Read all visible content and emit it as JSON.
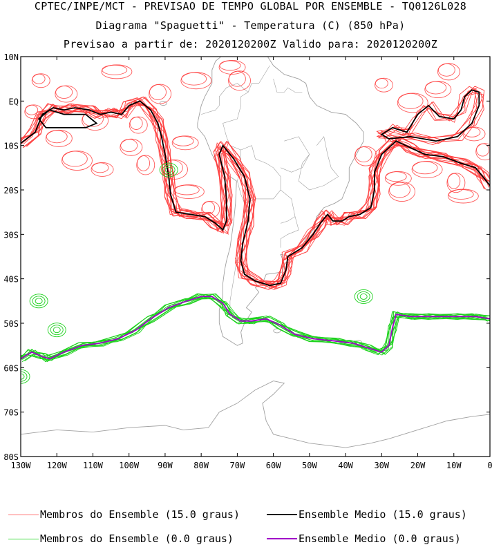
{
  "header": {
    "line1": "CPTEC/INPE/MCT - PREVISAO DE TEMPO GLOBAL POR ENSEMBLE - TQ0126L028",
    "line2": "Diagrama \"Spaguetti\" - Temperatura (C) (850 hPa)",
    "line3": "Previsao a partir de: 2020120200Z  Valido para: 2020120200Z"
  },
  "map": {
    "lat_range": [
      -80,
      10
    ],
    "lon_range": [
      -130,
      0
    ],
    "lat_ticks": [
      "10N",
      "EQ",
      "10S",
      "20S",
      "30S",
      "40S",
      "50S",
      "60S",
      "70S",
      "80S"
    ],
    "lon_ticks": [
      "130W",
      "120W",
      "110W",
      "100W",
      "90W",
      "80W",
      "70W",
      "60W",
      "50W",
      "40W",
      "30W",
      "20W",
      "10W",
      "0"
    ],
    "colors": {
      "members_15": "#ff3c3c",
      "mean_15": "#000000",
      "members_0": "#1ed21e",
      "mean_0": "#a000c8",
      "coast": "#a0a0a0"
    }
  },
  "legend": {
    "members_15": "Membros do Ensemble (15.0 graus)",
    "mean_15": "Ensemble Medio (15.0 graus)",
    "members_0": "Membros do Ensemble (0.0 graus)",
    "mean_0": "Ensemble Medio (0.0 graus)"
  }
}
